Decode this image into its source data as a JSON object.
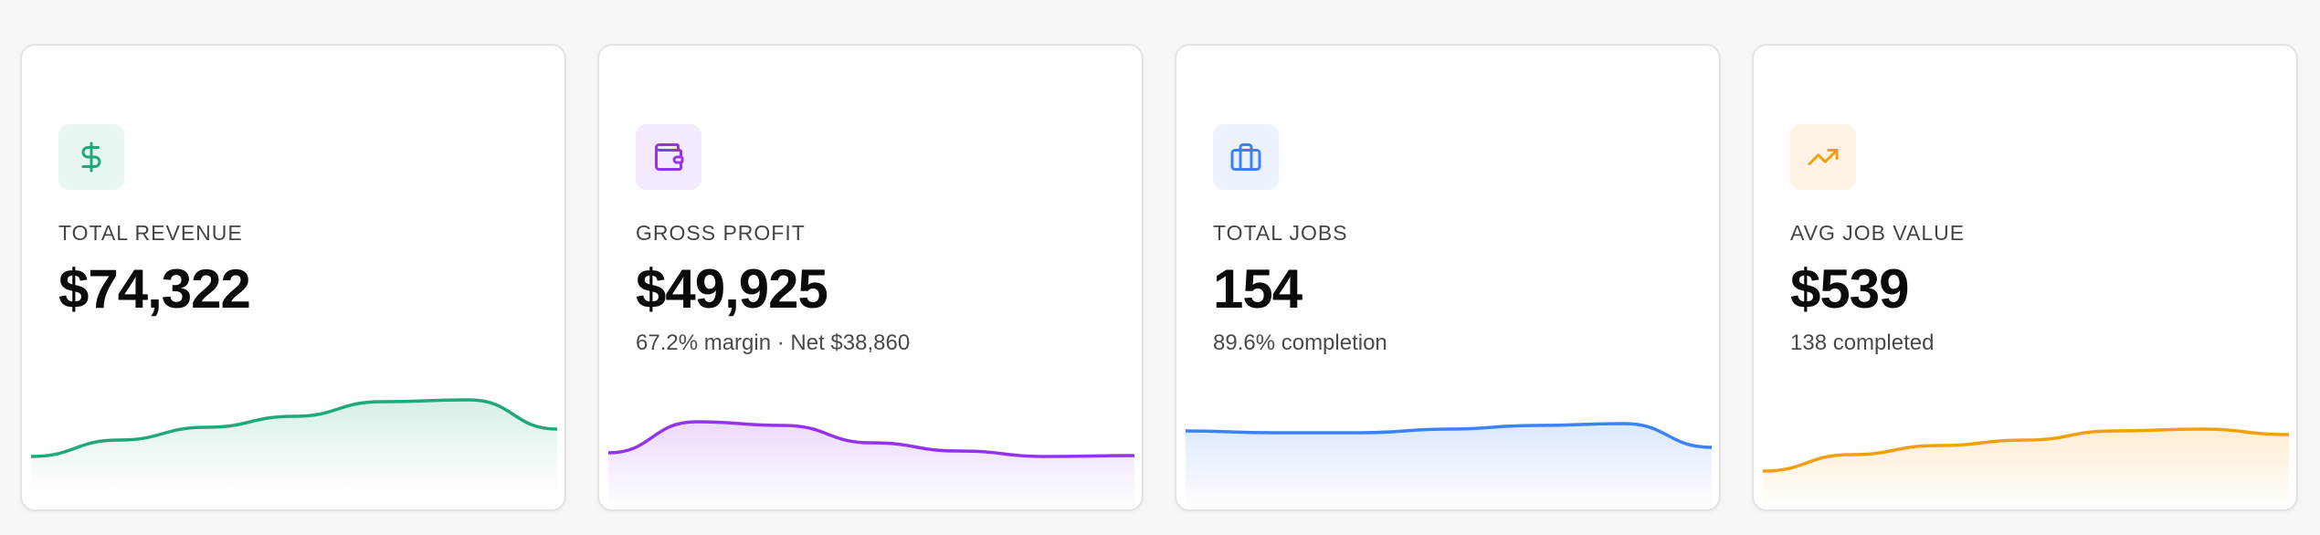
{
  "cards": [
    {
      "label": "TOTAL REVENUE",
      "value": "$74,322",
      "subtitle": "",
      "icon": "dollar-icon",
      "accent": "#1fa87a",
      "icon_bg": "#e8f6f0",
      "trend": [
        0.2,
        0.38,
        0.52,
        0.64,
        0.8,
        0.82,
        0.5
      ]
    },
    {
      "label": "GROSS PROFIT",
      "value": "$49,925",
      "subtitle": "67.2% margin · Net $38,860",
      "icon": "wallet-icon",
      "accent": "#9333ea",
      "icon_bg": "#f3ebfd",
      "trend": [
        0.44,
        0.78,
        0.74,
        0.55,
        0.46,
        0.4,
        0.41
      ]
    },
    {
      "label": "TOTAL JOBS",
      "value": "154",
      "subtitle": "89.6% completion",
      "icon": "briefcase-icon",
      "accent": "#3b82f6",
      "icon_bg": "#ebf2fe",
      "trend": [
        0.68,
        0.66,
        0.66,
        0.7,
        0.74,
        0.76,
        0.5
      ]
    },
    {
      "label": "AVG JOB VALUE",
      "value": "$539",
      "subtitle": "138 completed",
      "icon": "trend-up-icon",
      "accent": "#f59e0b",
      "icon_bg": "#fdf2e3",
      "trend": [
        0.24,
        0.42,
        0.52,
        0.58,
        0.68,
        0.7,
        0.64
      ]
    }
  ]
}
